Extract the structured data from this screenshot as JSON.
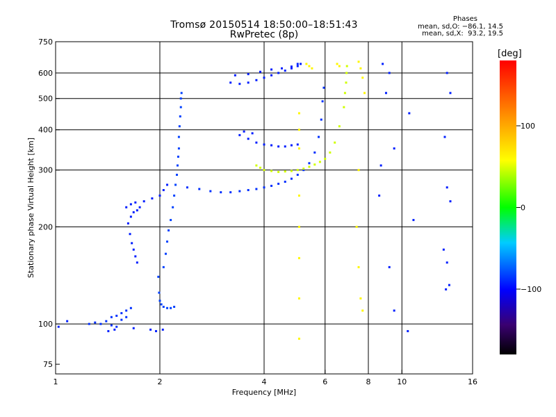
{
  "header": {
    "title": "Tromsø 20150514 18:50:00–18:51:43",
    "subtitle": "RwPretec (8p)",
    "phases_title": "Phases",
    "stats_o": "mean, sd,O: −86.1, 14.5",
    "stats_x": "mean, sd,X:  93.2, 19.5"
  },
  "colorbar": {
    "unit": "[deg]",
    "tick_labels": [
      "100",
      "0",
      "−100"
    ],
    "tick_values": [
      100,
      0,
      -100
    ],
    "range": [
      -180,
      180
    ]
  },
  "chart_data": {
    "type": "scatter",
    "xlabel": "Frequency [MHz]",
    "ylabel": "Stationary phase Virtual Height [km]",
    "xscale": "log",
    "yscale": "log",
    "xlim": [
      1,
      16
    ],
    "ylim": [
      70,
      750
    ],
    "xticks": [
      1,
      2,
      4,
      6,
      8,
      10,
      16
    ],
    "xtick_labels": [
      "1",
      "2",
      "4",
      "6",
      "8",
      "10",
      "16"
    ],
    "yticks": [
      75,
      100,
      200,
      300,
      400,
      500,
      600,
      750
    ],
    "ytick_labels": [
      "75",
      "100",
      "200",
      "300",
      "400",
      "500",
      "600",
      "750"
    ],
    "x_gridlines": [
      2,
      4,
      6,
      8,
      10
    ],
    "y_gridlines": [
      100,
      200,
      300,
      400,
      500,
      600
    ],
    "grid": true,
    "color_scale": "phase in degrees, rainbow colour scale",
    "traces": [
      {
        "name_hint": "O-mode E/F1 trace",
        "phase": -95,
        "points": [
          [
            1.25,
            100
          ],
          [
            1.3,
            101
          ],
          [
            1.35,
            100
          ],
          [
            1.4,
            102
          ],
          [
            1.45,
            105
          ],
          [
            1.5,
            106
          ],
          [
            1.55,
            108
          ],
          [
            1.6,
            110
          ],
          [
            1.65,
            112
          ],
          [
            1.55,
            103
          ],
          [
            1.6,
            105
          ],
          [
            1.45,
            99
          ],
          [
            1.5,
            98
          ]
        ]
      },
      {
        "name_hint": "O-mode low trace",
        "phase": -100,
        "points": [
          [
            1.02,
            98
          ],
          [
            1.08,
            102
          ],
          [
            1.42,
            95
          ],
          [
            1.48,
            96
          ],
          [
            1.68,
            97
          ],
          [
            1.88,
            96
          ],
          [
            1.95,
            95
          ],
          [
            2.04,
            96
          ]
        ]
      },
      {
        "name_hint": "O-mode rising trace",
        "phase": -100,
        "points": [
          [
            1.62,
            205
          ],
          [
            1.64,
            190
          ],
          [
            1.66,
            178
          ],
          [
            1.68,
            170
          ],
          [
            1.7,
            162
          ],
          [
            1.72,
            155
          ],
          [
            1.6,
            230
          ],
          [
            1.65,
            235
          ],
          [
            1.7,
            238
          ],
          [
            1.75,
            230
          ],
          [
            1.65,
            215
          ],
          [
            1.68,
            222
          ],
          [
            1.72,
            225
          ],
          [
            1.8,
            240
          ],
          [
            1.9,
            245
          ],
          [
            2.0,
            250
          ],
          [
            2.05,
            260
          ],
          [
            2.1,
            270
          ]
        ]
      },
      {
        "name_hint": "O-mode knee",
        "phase": -90,
        "points": [
          [
            1.98,
            140
          ],
          [
            1.99,
            125
          ],
          [
            2.0,
            118
          ],
          [
            2.02,
            115
          ],
          [
            2.05,
            113
          ],
          [
            2.1,
            112
          ],
          [
            2.15,
            112
          ],
          [
            2.2,
            113
          ],
          [
            2.05,
            150
          ],
          [
            2.08,
            165
          ],
          [
            2.1,
            180
          ],
          [
            2.12,
            195
          ],
          [
            2.15,
            210
          ],
          [
            2.18,
            230
          ],
          [
            2.2,
            250
          ],
          [
            2.22,
            270
          ],
          [
            2.24,
            290
          ],
          [
            2.25,
            310
          ],
          [
            2.26,
            330
          ],
          [
            2.27,
            350
          ],
          [
            2.27,
            380
          ],
          [
            2.28,
            410
          ],
          [
            2.29,
            440
          ],
          [
            2.3,
            470
          ],
          [
            2.3,
            500
          ],
          [
            2.31,
            520
          ]
        ]
      },
      {
        "name_hint": "F2 O-mode",
        "phase": -95,
        "points": [
          [
            2.4,
            265
          ],
          [
            2.6,
            262
          ],
          [
            2.8,
            258
          ],
          [
            3.0,
            256
          ],
          [
            3.2,
            256
          ],
          [
            3.4,
            258
          ],
          [
            3.6,
            260
          ],
          [
            3.8,
            262
          ],
          [
            4.0,
            265
          ],
          [
            4.2,
            268
          ],
          [
            4.4,
            272
          ],
          [
            4.6,
            276
          ],
          [
            4.8,
            282
          ],
          [
            5.0,
            290
          ],
          [
            5.2,
            300
          ],
          [
            5.4,
            315
          ],
          [
            5.6,
            340
          ],
          [
            5.75,
            380
          ],
          [
            5.85,
            430
          ],
          [
            5.9,
            490
          ],
          [
            5.95,
            540
          ]
        ]
      },
      {
        "name_hint": "F2 X-mode",
        "phase": 95,
        "points": [
          [
            4.0,
            300
          ],
          [
            4.2,
            298
          ],
          [
            4.4,
            296
          ],
          [
            4.6,
            297
          ],
          [
            4.8,
            298
          ],
          [
            5.0,
            300
          ],
          [
            5.2,
            303
          ],
          [
            5.4,
            307
          ],
          [
            5.6,
            312
          ],
          [
            5.8,
            318
          ],
          [
            6.0,
            325
          ],
          [
            6.2,
            340
          ],
          [
            6.4,
            365
          ],
          [
            6.6,
            410
          ],
          [
            6.8,
            470
          ],
          [
            6.85,
            520
          ],
          [
            6.9,
            560
          ],
          [
            6.92,
            600
          ],
          [
            6.94,
            630
          ],
          [
            3.8,
            310
          ],
          [
            3.9,
            305
          ]
        ]
      },
      {
        "name_hint": "Multihop O",
        "phase": -100,
        "points": [
          [
            3.2,
            560
          ],
          [
            3.4,
            555
          ],
          [
            3.6,
            560
          ],
          [
            3.8,
            570
          ],
          [
            4.0,
            580
          ],
          [
            4.2,
            590
          ],
          [
            4.4,
            600
          ],
          [
            4.6,
            610
          ],
          [
            4.8,
            620
          ],
          [
            5.0,
            630
          ],
          [
            5.1,
            640
          ],
          [
            3.3,
            590
          ],
          [
            3.6,
            595
          ],
          [
            3.9,
            605
          ],
          [
            4.2,
            615
          ],
          [
            4.5,
            620
          ],
          [
            4.8,
            628
          ],
          [
            5.0,
            640
          ]
        ]
      },
      {
        "name_hint": "Mid-level O",
        "phase": -100,
        "points": [
          [
            3.4,
            385
          ],
          [
            3.6,
            375
          ],
          [
            3.8,
            365
          ],
          [
            4.0,
            360
          ],
          [
            4.2,
            358
          ],
          [
            4.4,
            355
          ],
          [
            4.6,
            355
          ],
          [
            4.8,
            358
          ],
          [
            5.0,
            360
          ],
          [
            3.5,
            395
          ],
          [
            3.7,
            390
          ]
        ]
      },
      {
        "name_hint": "X scatter",
        "phase": 110,
        "points": [
          [
            5.3,
            640
          ],
          [
            5.4,
            630
          ],
          [
            5.5,
            620
          ],
          [
            6.5,
            640
          ],
          [
            6.6,
            630
          ],
          [
            5.05,
            450
          ],
          [
            5.05,
            400
          ],
          [
            5.05,
            350
          ],
          [
            5.05,
            250
          ],
          [
            5.05,
            200
          ],
          [
            5.05,
            160
          ],
          [
            5.05,
            120
          ],
          [
            5.05,
            90
          ],
          [
            7.5,
            650
          ],
          [
            7.6,
            620
          ],
          [
            7.7,
            580
          ],
          [
            7.8,
            520
          ],
          [
            7.5,
            300
          ],
          [
            7.4,
            200
          ],
          [
            7.5,
            150
          ],
          [
            7.6,
            120
          ],
          [
            7.7,
            110
          ]
        ]
      },
      {
        "name_hint": "Right-edge scatter",
        "phase": -100,
        "points": [
          [
            8.8,
            640
          ],
          [
            9.2,
            600
          ],
          [
            9.5,
            350
          ],
          [
            9.0,
            520
          ],
          [
            8.7,
            310
          ],
          [
            8.6,
            250
          ],
          [
            9.2,
            150
          ],
          [
            9.5,
            110
          ],
          [
            10.5,
            450
          ],
          [
            10.8,
            210
          ],
          [
            10.4,
            95
          ],
          [
            13.5,
            600
          ],
          [
            13.8,
            520
          ],
          [
            13.3,
            380
          ],
          [
            13.5,
            265
          ],
          [
            13.8,
            240
          ],
          [
            13.2,
            170
          ],
          [
            13.5,
            155
          ],
          [
            13.7,
            132
          ],
          [
            13.4,
            128
          ]
        ]
      }
    ]
  }
}
